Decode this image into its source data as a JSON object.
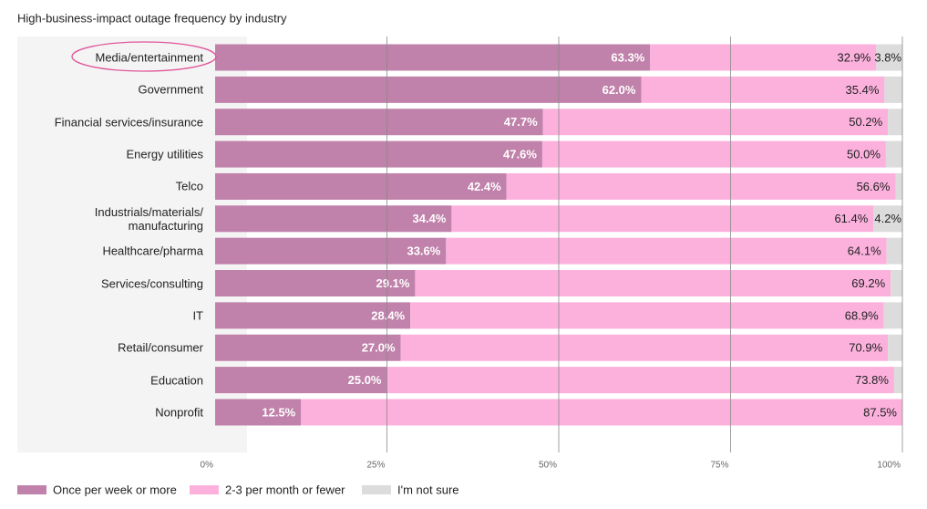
{
  "chart_data": {
    "type": "stacked-bar-horizontal",
    "title": "High-business-impact outage frequency by industry",
    "categories": [
      "Media/entertainment",
      "Government",
      "Financial services/insurance",
      "Energy utilities",
      "Telco",
      "Industrials/materials/ manufacturing",
      "Healthcare/pharma",
      "Services/consulting",
      "IT",
      "Retail/consumer",
      "Education",
      "Nonprofit"
    ],
    "series": [
      {
        "name": "Once per week or more",
        "color": "#c081aa",
        "values": [
          63.3,
          62.0,
          47.7,
          47.6,
          42.4,
          34.4,
          33.6,
          29.1,
          28.4,
          27.0,
          25.0,
          12.5
        ],
        "value_labels": [
          "63.3%",
          "62.0%",
          "47.7%",
          "47.6%",
          "42.4%",
          "34.4%",
          "33.6%",
          "29.1%",
          "28.4%",
          "27.0%",
          "25.0%",
          "12.5%"
        ]
      },
      {
        "name": "2-3 per month or fewer",
        "color": "#fcb1dd",
        "values": [
          32.9,
          35.4,
          50.2,
          50.0,
          56.6,
          61.4,
          64.1,
          69.2,
          68.9,
          70.9,
          73.8,
          87.5
        ],
        "value_labels": [
          "32.9%",
          "35.4%",
          "50.2%",
          "50.0%",
          "56.6%",
          "61.4%",
          "64.1%",
          "69.2%",
          "68.9%",
          "70.9%",
          "73.8%",
          "87.5%"
        ]
      },
      {
        "name": "I'm not sure",
        "color": "#dcdcdc",
        "values": [
          3.8,
          2.6,
          2.1,
          2.4,
          1.0,
          4.2,
          2.3,
          1.7,
          2.7,
          2.1,
          1.2,
          0
        ],
        "value_labels": [
          "3.8%",
          null,
          null,
          null,
          null,
          "4.2%",
          null,
          null,
          null,
          null,
          null,
          null
        ]
      }
    ],
    "xlim": [
      0,
      100
    ],
    "xticks": [
      {
        "value": 0,
        "label": "0%"
      },
      {
        "value": 25,
        "label": "25%"
      },
      {
        "value": 50,
        "label": "50%"
      },
      {
        "value": 75,
        "label": "75%"
      },
      {
        "value": 100,
        "label": "100%"
      }
    ],
    "grid": true,
    "legend": "bottom"
  }
}
